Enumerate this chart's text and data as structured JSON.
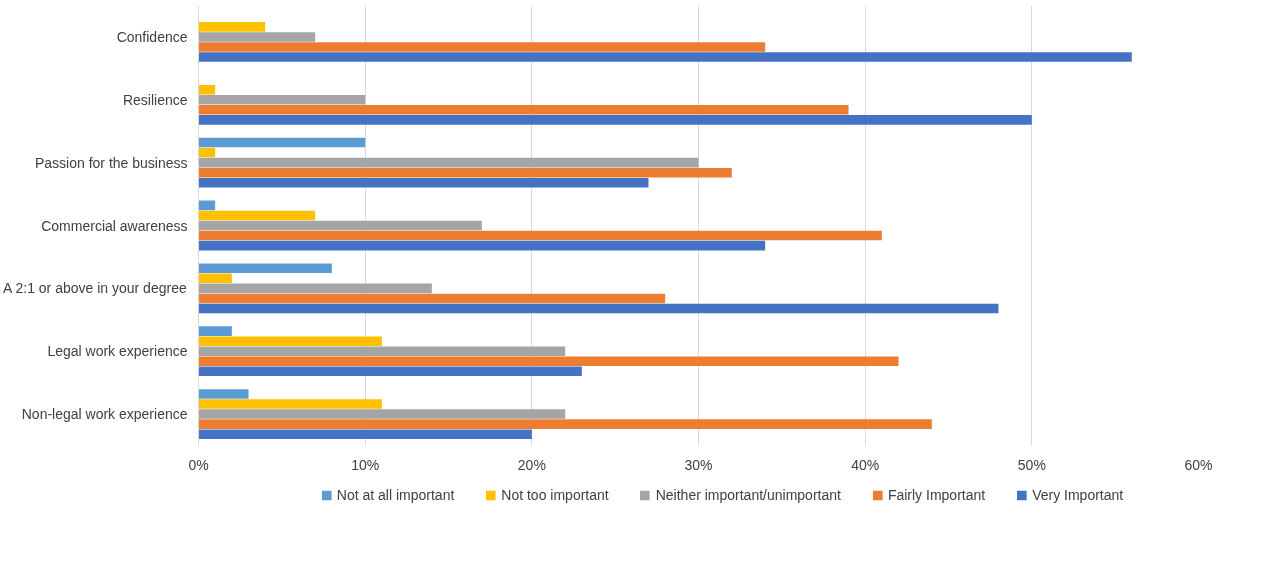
{
  "chart_data": {
    "type": "bar",
    "orientation": "horizontal",
    "categories": [
      "Confidence",
      "Resilience",
      "Passion for the business",
      "Commercial awareness",
      "A 2:1 or above in your degree",
      "Legal work experience",
      "Non-legal work experience"
    ],
    "series": [
      {
        "name": "Not at all important",
        "color": "#5b9bd5",
        "values": [
          0,
          0,
          10,
          1,
          8,
          2,
          3
        ]
      },
      {
        "name": "Not too important",
        "color": "#ffc000",
        "values": [
          4,
          1,
          1,
          7,
          2,
          11,
          11
        ]
      },
      {
        "name": "Neither important/unimportant",
        "color": "#a5a5a5",
        "values": [
          7,
          10,
          30,
          17,
          14,
          22,
          22
        ]
      },
      {
        "name": "Fairly Important",
        "color": "#ed7d31",
        "values": [
          34,
          39,
          32,
          41,
          28,
          42,
          44
        ]
      },
      {
        "name": "Very Important",
        "color": "#4472c4",
        "values": [
          56,
          50,
          27,
          34,
          48,
          23,
          20
        ]
      }
    ],
    "xlim": [
      0,
      60
    ],
    "xticks": [
      {
        "value": 0,
        "label": "0%"
      },
      {
        "value": 10,
        "label": "10%"
      },
      {
        "value": 20,
        "label": "20%"
      },
      {
        "value": 30,
        "label": "30%"
      },
      {
        "value": 40,
        "label": "40%"
      },
      {
        "value": 50,
        "label": "50%"
      },
      {
        "value": 60,
        "label": "60%"
      }
    ],
    "grid": "x",
    "legend": "bottom"
  }
}
